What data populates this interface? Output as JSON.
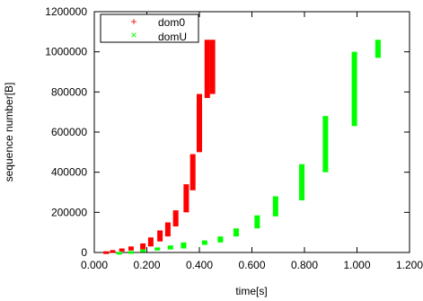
{
  "chart_data": {
    "type": "scatter",
    "xlabel": "time[s]",
    "ylabel": "sequence number[B]",
    "xlim": [
      0.0,
      1.2
    ],
    "ylim": [
      0,
      1200000
    ],
    "x_ticks": [
      "0.000",
      "0.200",
      "0.400",
      "0.600",
      "0.800",
      "1.000",
      "1.200"
    ],
    "y_ticks": [
      "0",
      "200000",
      "400000",
      "600000",
      "800000",
      "1000000",
      "1200000"
    ],
    "grid": false,
    "legend_position": "top-left",
    "series": [
      {
        "name": "dom0",
        "marker": "+",
        "color": "#ff0000",
        "x": [
          0.045,
          0.07,
          0.105,
          0.14,
          0.185,
          0.215,
          0.25,
          0.28,
          0.31,
          0.35,
          0.375,
          0.4,
          0.43,
          0.45
        ],
        "y0": [
          0,
          2000,
          5000,
          10000,
          15000,
          30000,
          55000,
          80000,
          130000,
          200000,
          310000,
          500000,
          770000,
          790000
        ],
        "y1": [
          6000,
          12000,
          20000,
          30000,
          45000,
          75000,
          110000,
          150000,
          210000,
          340000,
          490000,
          790000,
          1060000,
          1060000
        ]
      },
      {
        "name": "domU",
        "marker": "x",
        "color": "#00ff00",
        "x": [
          0.095,
          0.14,
          0.185,
          0.24,
          0.29,
          0.34,
          0.42,
          0.48,
          0.54,
          0.62,
          0.69,
          0.79,
          0.88,
          0.99,
          1.08
        ],
        "y0": [
          0,
          2000,
          5000,
          10000,
          15000,
          20000,
          38000,
          50000,
          80000,
          120000,
          180000,
          260000,
          400000,
          630000,
          970000
        ],
        "y1": [
          3000,
          7000,
          15000,
          25000,
          35000,
          50000,
          60000,
          80000,
          120000,
          185000,
          280000,
          440000,
          680000,
          1000000,
          1060000
        ]
      }
    ]
  }
}
